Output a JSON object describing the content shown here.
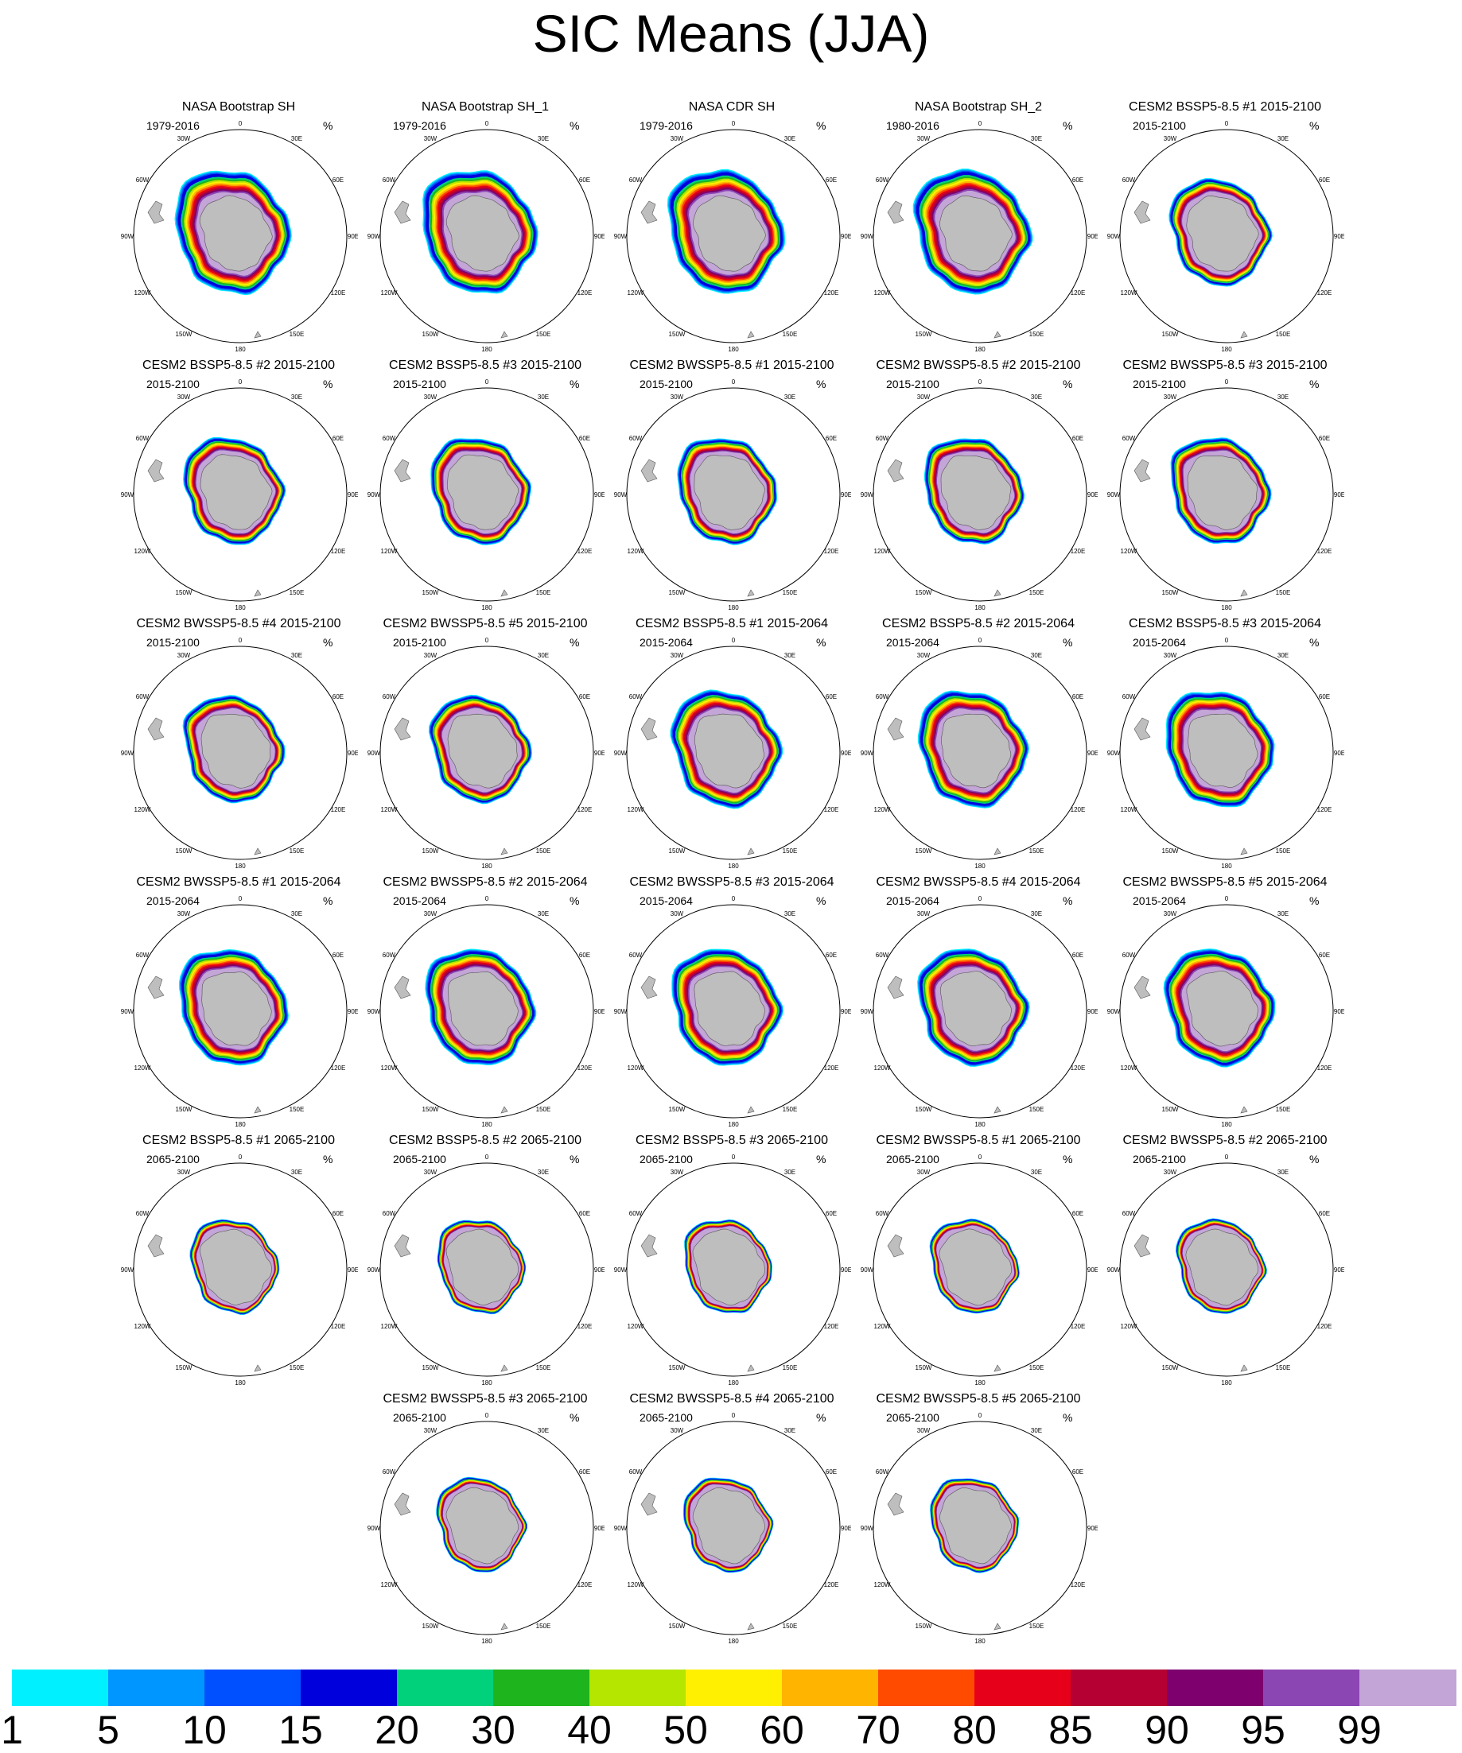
{
  "title": "SIC Means (JJA)",
  "unit": "%",
  "panels": [
    {
      "title": "NASA Bootstrap SH",
      "period": "1979-2016",
      "extent": 1.0
    },
    {
      "title": "NASA Bootstrap SH_1",
      "period": "1979-2016",
      "extent": 1.0
    },
    {
      "title": "NASA CDR SH",
      "period": "1979-2016",
      "extent": 1.0
    },
    {
      "title": "NASA Bootstrap SH_2",
      "period": "1980-2016",
      "extent": 1.0
    },
    {
      "title": "CESM2 BSSP5-8.5 #1 2015-2100",
      "period": "2015-2100",
      "extent": 0.86
    },
    {
      "title": "CESM2 BSSP5-8.5 #2 2015-2100",
      "period": "2015-2100",
      "extent": 0.86
    },
    {
      "title": "CESM2 BSSP5-8.5 #3 2015-2100",
      "period": "2015-2100",
      "extent": 0.86
    },
    {
      "title": "CESM2 BWSSP5-8.5 #1 2015-2100",
      "period": "2015-2100",
      "extent": 0.86
    },
    {
      "title": "CESM2 BWSSP5-8.5 #2 2015-2100",
      "period": "2015-2100",
      "extent": 0.86
    },
    {
      "title": "CESM2 BWSSP5-8.5 #3 2015-2100",
      "period": "2015-2100",
      "extent": 0.86
    },
    {
      "title": "CESM2 BWSSP5-8.5 #4 2015-2100",
      "period": "2015-2100",
      "extent": 0.86
    },
    {
      "title": "CESM2 BWSSP5-8.5 #5 2015-2100",
      "period": "2015-2100",
      "extent": 0.86
    },
    {
      "title": "CESM2 BSSP5-8.5 #1 2015-2064",
      "period": "2015-2064",
      "extent": 0.94
    },
    {
      "title": "CESM2 BSSP5-8.5 #2 2015-2064",
      "period": "2015-2064",
      "extent": 0.94
    },
    {
      "title": "CESM2 BSSP5-8.5 #3 2015-2064",
      "period": "2015-2064",
      "extent": 0.94
    },
    {
      "title": "CESM2 BWSSP5-8.5 #1 2015-2064",
      "period": "2015-2064",
      "extent": 0.94
    },
    {
      "title": "CESM2 BWSSP5-8.5 #2 2015-2064",
      "period": "2015-2064",
      "extent": 0.94
    },
    {
      "title": "CESM2 BWSSP5-8.5 #3 2015-2064",
      "period": "2015-2064",
      "extent": 0.94
    },
    {
      "title": "CESM2 BWSSP5-8.5 #4 2015-2064",
      "period": "2015-2064",
      "extent": 0.94
    },
    {
      "title": "CESM2 BWSSP5-8.5 #5 2015-2064",
      "period": "2015-2064",
      "extent": 0.94
    },
    {
      "title": "CESM2 BSSP5-8.5 #1 2065-2100",
      "period": "2065-2100",
      "extent": 0.76
    },
    {
      "title": "CESM2 BSSP5-8.5 #2 2065-2100",
      "period": "2065-2100",
      "extent": 0.76
    },
    {
      "title": "CESM2 BSSP5-8.5 #3 2065-2100",
      "period": "2065-2100",
      "extent": 0.76
    },
    {
      "title": "CESM2 BWSSP5-8.5 #1 2065-2100",
      "period": "2065-2100",
      "extent": 0.76
    },
    {
      "title": "CESM2 BWSSP5-8.5 #2 2065-2100",
      "period": "2065-2100",
      "extent": 0.76
    },
    {
      "title": "CESM2 BWSSP5-8.5 #3 2065-2100",
      "period": "2065-2100",
      "extent": 0.76
    },
    {
      "title": "CESM2 BWSSP5-8.5 #4 2065-2100",
      "period": "2065-2100",
      "extent": 0.76
    },
    {
      "title": "CESM2 BWSSP5-8.5 #5 2065-2100",
      "period": "2065-2100",
      "extent": 0.76
    }
  ],
  "lon_labels": [
    "0",
    "30E",
    "60E",
    "90E",
    "120E",
    "150E",
    "180",
    "150W",
    "120W",
    "90W",
    "60W",
    "30W"
  ],
  "colorbar": {
    "colors": [
      "#00f0ff",
      "#0096ff",
      "#0050ff",
      "#0000dc",
      "#00d17a",
      "#1eb41e",
      "#b4e600",
      "#ffef00",
      "#ffb400",
      "#ff4b00",
      "#e60019",
      "#b40032",
      "#7d006e",
      "#8c46b4",
      "#c3a5d7"
    ],
    "labels": [
      "1",
      "5",
      "10",
      "15",
      "20",
      "30",
      "40",
      "50",
      "60",
      "70",
      "80",
      "85",
      "90",
      "95",
      "99"
    ]
  },
  "land_color": "#bebebe"
}
